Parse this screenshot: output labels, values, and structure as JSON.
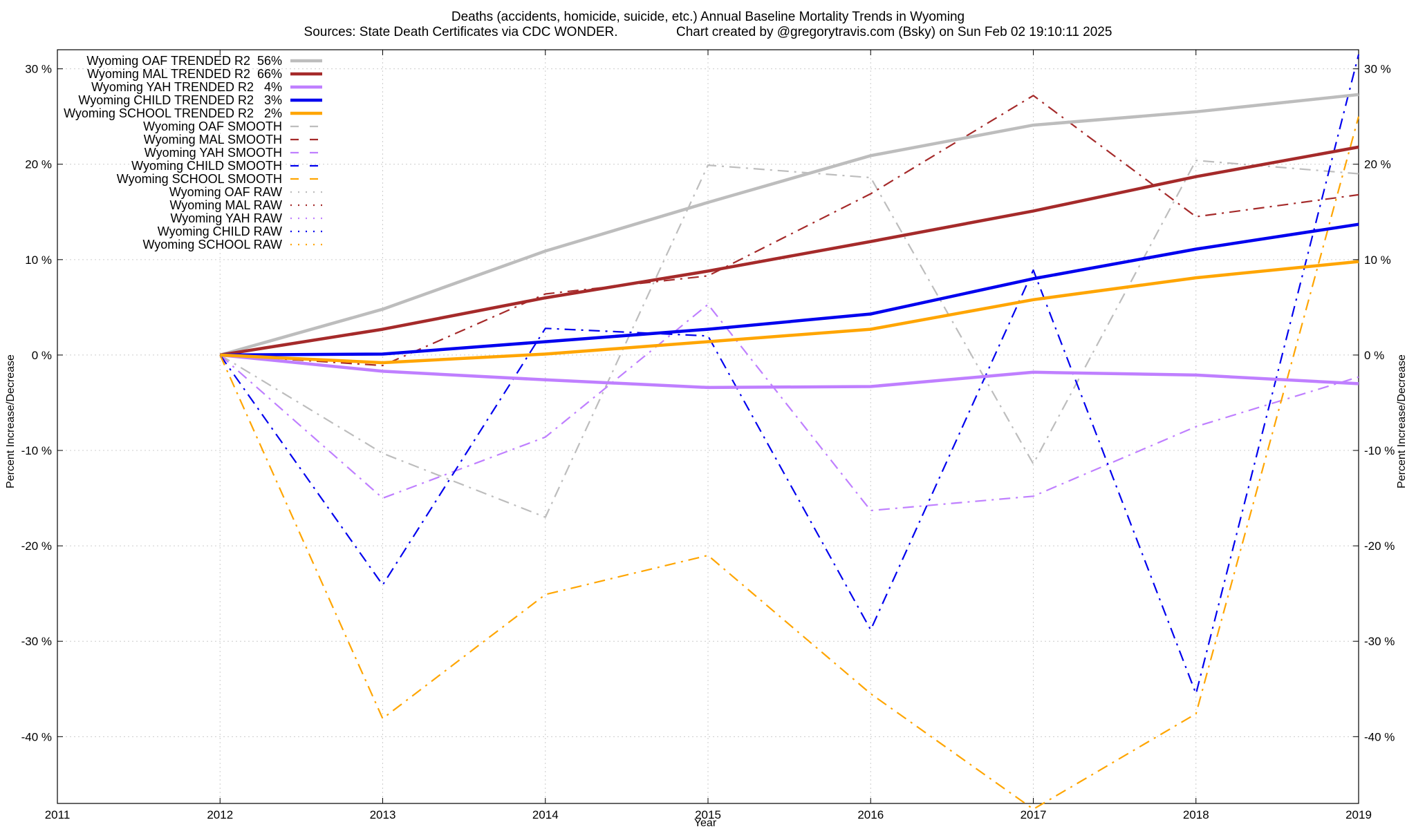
{
  "chart_data": {
    "type": "line",
    "title": "Deaths (accidents, homicide, suicide, etc.)  Annual Baseline Mortality Trends in Wyoming",
    "subtitle": "Sources: State Death Certificates via CDC WONDER.                Chart created by @gregorytravis.com (Bsky) on Sun Feb 02 19:10:11 2025",
    "xlabel": "Year",
    "ylabel": "Percent Increase/Decrease",
    "y2label": "Percent Increase/Decrease",
    "xlim": [
      2011,
      2019
    ],
    "ylim": [
      -47,
      32
    ],
    "x_ticks": [
      2011,
      2012,
      2013,
      2014,
      2015,
      2016,
      2017,
      2018,
      2019
    ],
    "x_tick_labels": [
      "2011",
      "2012",
      "2013",
      "2014",
      "2015",
      "2016",
      "2017",
      "2018",
      "2019"
    ],
    "y_ticks": [
      -40,
      -30,
      -20,
      -10,
      0,
      10,
      20,
      30
    ],
    "y_tick_labels": [
      "-40 %",
      "-30 %",
      "-20 %",
      "-10 %",
      "0 %",
      "10 %",
      "20 %",
      "30 %"
    ],
    "grid": true,
    "legend_position": "top-left",
    "series": [
      {
        "name": "Wyoming OAF TRENDED R2  56%",
        "style": "solid",
        "color": "#bdbdbd",
        "x": [
          2012,
          2013,
          2014,
          2015,
          2016,
          2017,
          2018,
          2019
        ],
        "values": [
          0,
          4.8,
          10.9,
          16.0,
          20.9,
          24.1,
          25.5,
          27.3
        ]
      },
      {
        "name": "Wyoming MAL TRENDED R2  66%",
        "style": "solid",
        "color": "#a52a2a",
        "x": [
          2012,
          2013,
          2014,
          2015,
          2016,
          2017,
          2018,
          2019
        ],
        "values": [
          0,
          2.7,
          6.0,
          8.8,
          11.9,
          15.1,
          18.7,
          21.8
        ]
      },
      {
        "name": "Wyoming YAH TRENDED R2   4%",
        "style": "solid",
        "color": "#bf7fff",
        "x": [
          2012,
          2013,
          2014,
          2015,
          2016,
          2017,
          2018,
          2019
        ],
        "values": [
          0,
          -1.7,
          -2.6,
          -3.4,
          -3.3,
          -1.8,
          -2.1,
          -3.0
        ]
      },
      {
        "name": "Wyoming CHILD TRENDED R2   3%",
        "style": "solid",
        "color": "#0000ee",
        "x": [
          2012,
          2013,
          2014,
          2015,
          2016,
          2017,
          2018,
          2019
        ],
        "values": [
          0,
          0.1,
          1.4,
          2.7,
          4.3,
          8.0,
          11.1,
          13.7
        ]
      },
      {
        "name": "Wyoming SCHOOL TRENDED R2   2%",
        "style": "solid",
        "color": "#ffa500",
        "x": [
          2012,
          2013,
          2014,
          2015,
          2016,
          2017,
          2018,
          2019
        ],
        "values": [
          0,
          -0.8,
          0.1,
          1.4,
          2.7,
          5.8,
          8.1,
          9.8
        ]
      },
      {
        "name": "Wyoming OAF SMOOTH",
        "style": "dashed",
        "color": "#bdbdbd",
        "x": [],
        "values": []
      },
      {
        "name": "Wyoming MAL SMOOTH",
        "style": "dashed",
        "color": "#a52a2a",
        "x": [],
        "values": []
      },
      {
        "name": "Wyoming YAH SMOOTH",
        "style": "dashed",
        "color": "#bf7fff",
        "x": [],
        "values": []
      },
      {
        "name": "Wyoming CHILD SMOOTH",
        "style": "dashed",
        "color": "#0000ee",
        "x": [],
        "values": []
      },
      {
        "name": "Wyoming SCHOOL SMOOTH",
        "style": "dashed",
        "color": "#ffa500",
        "x": [],
        "values": []
      },
      {
        "name": "Wyoming OAF RAW",
        "style": "dotted",
        "color": "#bdbdbd",
        "x": [],
        "values": []
      },
      {
        "name": "Wyoming MAL RAW",
        "style": "dotted",
        "color": "#a52a2a",
        "x": [],
        "values": []
      },
      {
        "name": "Wyoming YAH RAW",
        "style": "dotted",
        "color": "#bf7fff",
        "x": [],
        "values": []
      },
      {
        "name": "Wyoming CHILD RAW",
        "style": "dotted",
        "color": "#0000ee",
        "x": [],
        "values": []
      },
      {
        "name": "Wyoming SCHOOL RAW",
        "style": "dotted",
        "color": "#ffa500",
        "x": [],
        "values": []
      },
      {
        "name": "",
        "legend": false,
        "style": "dashdot",
        "color": "#bdbdbd",
        "x": [
          2012,
          2013,
          2014,
          2015,
          2016,
          2017,
          2018,
          2019
        ],
        "values": [
          0,
          -10.3,
          -17.0,
          19.9,
          18.6,
          -11.4,
          20.4,
          19.0
        ]
      },
      {
        "name": "",
        "legend": false,
        "style": "dashdot",
        "color": "#a52a2a",
        "x": [
          2012,
          2013,
          2014,
          2015,
          2016,
          2017,
          2018,
          2019
        ],
        "values": [
          0,
          -1.1,
          6.4,
          8.3,
          16.9,
          27.2,
          14.5,
          16.8
        ]
      },
      {
        "name": "",
        "legend": false,
        "style": "dashdot",
        "color": "#bf7fff",
        "x": [
          2012,
          2013,
          2014,
          2015,
          2016,
          2017,
          2018,
          2019
        ],
        "values": [
          0,
          -15.0,
          -8.6,
          5.3,
          -16.3,
          -14.8,
          -7.5,
          -2.3
        ]
      },
      {
        "name": "",
        "legend": false,
        "style": "dashdot",
        "color": "#0000ee",
        "x": [
          2012,
          2013,
          2014,
          2015,
          2016,
          2017,
          2018,
          2019
        ],
        "values": [
          0,
          -24.1,
          2.8,
          2.0,
          -28.8,
          8.9,
          -35.5,
          31.5
        ]
      },
      {
        "name": "",
        "legend": false,
        "style": "dashdot",
        "color": "#ffa500",
        "x": [
          2012,
          2013,
          2014,
          2015,
          2016,
          2017,
          2018,
          2019
        ],
        "values": [
          0,
          -38.1,
          -25.1,
          -21.0,
          -35.5,
          -47.6,
          -37.6,
          25.0
        ]
      }
    ]
  }
}
